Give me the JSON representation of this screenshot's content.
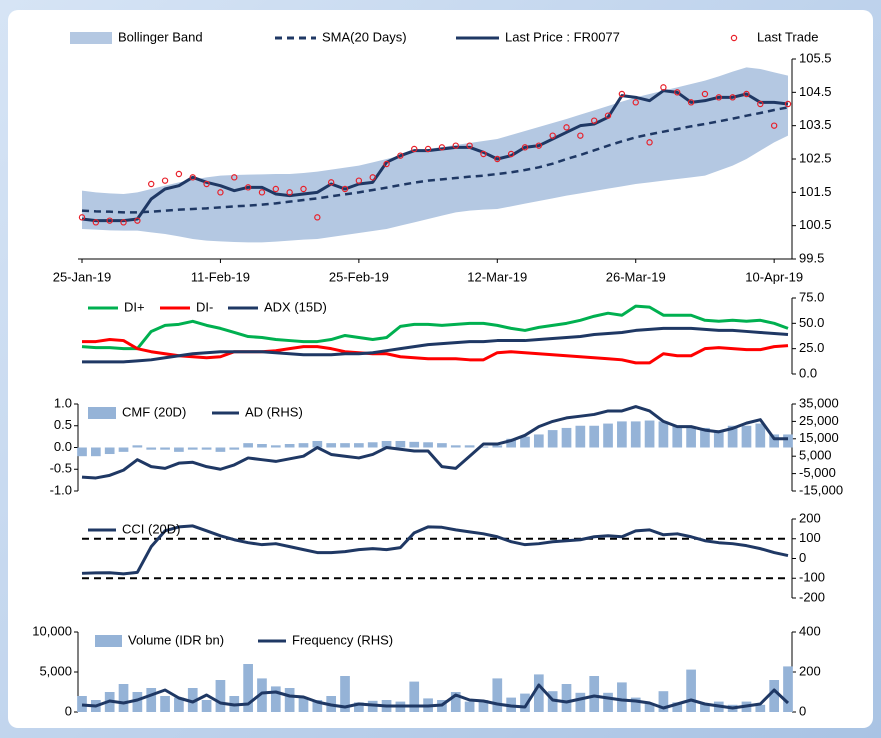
{
  "chart_data": [
    {
      "type": "line",
      "y_axis_side": "right",
      "categories": [
        "25-Jan-19",
        null,
        null,
        null,
        null,
        null,
        null,
        null,
        null,
        null,
        "11-Feb-19",
        null,
        null,
        null,
        null,
        null,
        null,
        null,
        null,
        null,
        "25-Feb-19",
        null,
        null,
        null,
        null,
        null,
        null,
        null,
        null,
        null,
        "12-Mar-19",
        null,
        null,
        null,
        null,
        null,
        null,
        null,
        null,
        null,
        "26-Mar-19",
        null,
        null,
        null,
        null,
        null,
        null,
        null,
        null,
        null,
        "10-Apr-19",
        null
      ],
      "ylim": [
        99.5,
        105.5
      ],
      "yticks": [
        99.5,
        100.5,
        101.5,
        102.5,
        103.5,
        104.5,
        105.5
      ],
      "series": [
        {
          "name": "Bollinger Band",
          "kind": "band",
          "color": "#b4c8e2",
          "upper": [
            101.55,
            101.5,
            101.47,
            101.45,
            101.5,
            101.6,
            101.7,
            101.8,
            101.88,
            101.95,
            102.0,
            102.02,
            102.03,
            102.04,
            102.05,
            102.05,
            102.08,
            102.12,
            102.18,
            102.24,
            102.3,
            102.4,
            102.5,
            102.6,
            102.7,
            102.8,
            102.86,
            102.92,
            102.98,
            103.04,
            103.1,
            103.22,
            103.34,
            103.46,
            103.58,
            103.7,
            103.83,
            103.96,
            104.09,
            104.22,
            104.35,
            104.45,
            104.55,
            104.65,
            104.75,
            104.85,
            104.98,
            105.12,
            105.25,
            105.2,
            105.1,
            105.0
          ],
          "lower": [
            100.4,
            100.38,
            100.36,
            100.35,
            100.35,
            100.3,
            100.25,
            100.18,
            100.1,
            100.05,
            100.03,
            100.01,
            100.0,
            100.0,
            100.02,
            100.05,
            100.08,
            100.1,
            100.16,
            100.22,
            100.28,
            100.34,
            100.4,
            100.5,
            100.6,
            100.7,
            100.8,
            100.9,
            100.95,
            100.98,
            101.0,
            101.08,
            101.16,
            101.24,
            101.32,
            101.4,
            101.47,
            101.54,
            101.61,
            101.68,
            101.75,
            101.8,
            101.85,
            101.9,
            101.95,
            102.0,
            102.15,
            102.3,
            102.5,
            102.75,
            103.0,
            103.2
          ]
        },
        {
          "name": "SMA(20 Days)",
          "kind": "dashed",
          "color": "#1f3864",
          "values": [
            100.95,
            100.93,
            100.92,
            100.9,
            100.9,
            100.92,
            100.95,
            100.98,
            101.0,
            101.02,
            101.05,
            101.08,
            101.1,
            101.13,
            101.17,
            101.22,
            101.27,
            101.32,
            101.38,
            101.44,
            101.5,
            101.57,
            101.64,
            101.72,
            101.79,
            101.85,
            101.89,
            101.93,
            101.97,
            102.0,
            102.05,
            102.1,
            102.17,
            102.25,
            102.36,
            102.5,
            102.62,
            102.76,
            102.9,
            103.03,
            103.15,
            103.24,
            103.32,
            103.4,
            103.48,
            103.55,
            103.63,
            103.71,
            103.8,
            103.88,
            103.97,
            104.05
          ]
        },
        {
          "name": "Last Price : FR0077",
          "kind": "line",
          "color": "#1f3864",
          "values": [
            100.7,
            100.65,
            100.65,
            100.65,
            100.7,
            101.3,
            101.6,
            101.7,
            101.95,
            101.8,
            101.7,
            101.55,
            101.65,
            101.65,
            101.45,
            101.4,
            101.45,
            101.5,
            101.75,
            101.6,
            101.75,
            101.8,
            102.4,
            102.6,
            102.75,
            102.75,
            102.8,
            102.85,
            102.85,
            102.7,
            102.5,
            102.6,
            102.85,
            102.9,
            103.1,
            103.3,
            103.5,
            103.55,
            103.75,
            104.4,
            104.35,
            104.25,
            104.55,
            104.5,
            104.2,
            104.25,
            104.35,
            104.35,
            104.45,
            104.2,
            104.2,
            104.15
          ]
        },
        {
          "name": "Last Trade",
          "kind": "marker",
          "color": "#e8202a",
          "values": [
            100.75,
            100.6,
            100.65,
            100.6,
            100.65,
            101.75,
            101.85,
            102.05,
            101.95,
            101.75,
            101.5,
            101.95,
            101.65,
            101.5,
            101.6,
            101.5,
            101.6,
            100.75,
            101.8,
            101.6,
            101.85,
            101.95,
            102.35,
            102.6,
            102.8,
            102.8,
            102.85,
            102.9,
            102.9,
            102.65,
            102.5,
            102.65,
            102.85,
            102.9,
            103.2,
            103.45,
            103.2,
            103.65,
            103.8,
            104.45,
            104.2,
            103.0,
            104.65,
            104.5,
            104.2,
            104.45,
            104.35,
            104.35,
            104.45,
            104.15,
            103.5,
            104.15
          ]
        }
      ]
    },
    {
      "type": "line",
      "y_axis_side": "right",
      "ylim": [
        0,
        75
      ],
      "yticks": [
        {
          "value": 0,
          "label": "0.0"
        },
        {
          "value": 25,
          "label": "25.0"
        },
        {
          "value": 50,
          "label": "50.0"
        },
        {
          "value": 75,
          "label": "75.0"
        }
      ],
      "series": [
        {
          "name": "DI+",
          "kind": "line",
          "color": "#00b050",
          "values": [
            27,
            26,
            26,
            25,
            25,
            42,
            48,
            49,
            52,
            48,
            45,
            41,
            37,
            36,
            34,
            33,
            32,
            32,
            34,
            38,
            36,
            34,
            36,
            47,
            49,
            49,
            48,
            49,
            50,
            50,
            48,
            45,
            43,
            46,
            48,
            50,
            53,
            57,
            60,
            58,
            67,
            66,
            58,
            58,
            58,
            53,
            52,
            53,
            52,
            53,
            50,
            45
          ]
        },
        {
          "name": "DI-",
          "kind": "line",
          "color": "#ff0000",
          "values": [
            32,
            32,
            34,
            33,
            25,
            22,
            20,
            18,
            17,
            16,
            17,
            22,
            22,
            22,
            23,
            25,
            27,
            27,
            25,
            22,
            21,
            20,
            20,
            17,
            16,
            15,
            15,
            15,
            14,
            14,
            21,
            22,
            21,
            20,
            19,
            18,
            17,
            16,
            15,
            14,
            11,
            11,
            20,
            18,
            18,
            25,
            26,
            25,
            24,
            24,
            27,
            28
          ]
        },
        {
          "name": "ADX (15D)",
          "kind": "line",
          "color": "#1f3864",
          "values": [
            12,
            12,
            12,
            12,
            13,
            14,
            16,
            18,
            20,
            21,
            22,
            22,
            22,
            22,
            21,
            20,
            19,
            19,
            19,
            20,
            20,
            21,
            23,
            25,
            27,
            29,
            30,
            31,
            32,
            32,
            33,
            33,
            33,
            34,
            35,
            36,
            37,
            39,
            40,
            41,
            43,
            44,
            45,
            45,
            45,
            44,
            43,
            43,
            42,
            41,
            40,
            39
          ]
        }
      ]
    },
    {
      "type": "combo",
      "y_axis_side": "left",
      "ylim": [
        -1,
        1
      ],
      "yticks": [
        {
          "value": -1,
          "label": "-1.0"
        },
        {
          "value": -0.5,
          "label": "-0.5"
        },
        {
          "value": 0,
          "label": "0.0"
        },
        {
          "value": 0.5,
          "label": "0.5"
        },
        {
          "value": 1,
          "label": "1.0"
        }
      ],
      "y2lim": [
        -15000,
        35000
      ],
      "y2ticks": [
        {
          "value": -15000,
          "label": "-15,000"
        },
        {
          "value": -5000,
          "label": "-5,000"
        },
        {
          "value": 5000,
          "label": "5,000"
        },
        {
          "value": 15000,
          "label": "15,000"
        },
        {
          "value": 25000,
          "label": "25,000"
        },
        {
          "value": 35000,
          "label": "35,000"
        }
      ],
      "series": [
        {
          "name": "CMF (20D)",
          "kind": "bar",
          "color": "#95b3d7",
          "values": [
            -0.2,
            -0.2,
            -0.15,
            -0.1,
            0.05,
            -0.05,
            -0.05,
            -0.1,
            -0.05,
            -0.05,
            -0.1,
            -0.05,
            0.1,
            0.08,
            0.05,
            0.08,
            0.1,
            0.15,
            0.1,
            0.1,
            0.1,
            0.12,
            0.15,
            0.15,
            0.13,
            0.12,
            0.1,
            0.05,
            0.05,
            0.02,
            0.05,
            0.2,
            0.25,
            0.3,
            0.4,
            0.45,
            0.5,
            0.5,
            0.55,
            0.6,
            0.6,
            0.62,
            0.6,
            0.5,
            0.45,
            0.45,
            0.4,
            0.5,
            0.5,
            0.55,
            0.3,
            0.3
          ]
        },
        {
          "name": "AD (RHS)",
          "kind": "line",
          "axis": "y2",
          "color": "#1f3864",
          "values": [
            -7000,
            -7500,
            -6000,
            -3000,
            3000,
            -1000,
            -2000,
            1000,
            1500,
            -1000,
            -2500,
            0,
            4000,
            3000,
            2000,
            3500,
            5000,
            10000,
            6000,
            5000,
            4000,
            6000,
            10000,
            9000,
            8000,
            8000,
            -1000,
            -2000,
            5000,
            12000,
            12000,
            14000,
            17000,
            22000,
            25000,
            27000,
            28000,
            29000,
            31000,
            31000,
            33500,
            31000,
            25000,
            22000,
            22000,
            20000,
            19000,
            21000,
            24000,
            26000,
            15000,
            15000
          ]
        }
      ]
    },
    {
      "type": "line",
      "y_axis_side": "right",
      "ylim": [
        -200,
        200
      ],
      "yticks": [
        -200,
        -100,
        0,
        100,
        200
      ],
      "reference_lines": [
        100,
        -100
      ],
      "series": [
        {
          "name": "CCI (20D)",
          "kind": "line",
          "color": "#1f3864",
          "values": [
            -75,
            -73,
            -72,
            -78,
            -70,
            60,
            140,
            160,
            165,
            140,
            115,
            95,
            80,
            70,
            75,
            60,
            45,
            30,
            30,
            35,
            45,
            50,
            45,
            55,
            130,
            160,
            158,
            145,
            135,
            125,
            110,
            85,
            70,
            75,
            85,
            90,
            95,
            110,
            115,
            110,
            140,
            145,
            120,
            125,
            110,
            90,
            80,
            75,
            65,
            50,
            30,
            15
          ]
        }
      ]
    },
    {
      "type": "combo",
      "y_axis_side": "left",
      "ylim": [
        0,
        10000
      ],
      "yticks": [
        0,
        {
          "value": 5000,
          "label": "5,000"
        },
        {
          "value": 10000,
          "label": "10,000"
        }
      ],
      "y2lim": [
        0,
        400
      ],
      "y2ticks": [
        0,
        200,
        400
      ],
      "series": [
        {
          "name": "Volume (IDR bn)",
          "kind": "bar",
          "color": "#95b3d7",
          "values": [
            2000,
            1500,
            2500,
            3500,
            2500,
            3000,
            2000,
            1800,
            3000,
            1500,
            4000,
            2000,
            6000,
            4200,
            3200,
            3000,
            1800,
            1500,
            2000,
            4500,
            1200,
            1400,
            1500,
            1300,
            3800,
            1700,
            1500,
            2500,
            1300,
            1500,
            4200,
            1800,
            2300,
            4700,
            2600,
            3500,
            2400,
            4500,
            2400,
            3700,
            1800,
            1000,
            2600,
            1200,
            5300,
            1000,
            1300,
            900,
            1300,
            900,
            4000,
            5700
          ]
        },
        {
          "name": "Frequency (RHS)",
          "kind": "line",
          "axis": "y2",
          "color": "#1f3864",
          "values": [
            35,
            30,
            55,
            45,
            60,
            85,
            110,
            70,
            50,
            85,
            45,
            35,
            40,
            95,
            100,
            80,
            75,
            50,
            35,
            25,
            40,
            35,
            30,
            30,
            30,
            30,
            35,
            85,
            60,
            55,
            40,
            30,
            25,
            135,
            60,
            50,
            65,
            80,
            70,
            60,
            55,
            45,
            20,
            40,
            60,
            40,
            30,
            20,
            30,
            40,
            110,
            45
          ]
        }
      ]
    }
  ]
}
